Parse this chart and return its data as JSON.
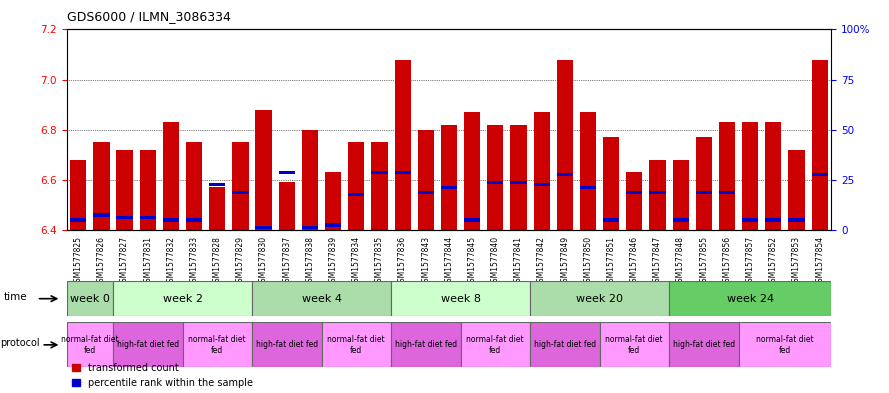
{
  "title": "GDS6000 / ILMN_3086334",
  "samples": [
    "GSM1577825",
    "GSM1577826",
    "GSM1577827",
    "GSM1577831",
    "GSM1577832",
    "GSM1577833",
    "GSM1577828",
    "GSM1577829",
    "GSM1577830",
    "GSM1577837",
    "GSM1577838",
    "GSM1577839",
    "GSM1577834",
    "GSM1577835",
    "GSM1577836",
    "GSM1577843",
    "GSM1577844",
    "GSM1577845",
    "GSM1577840",
    "GSM1577841",
    "GSM1577842",
    "GSM1577849",
    "GSM1577850",
    "GSM1577851",
    "GSM1577846",
    "GSM1577847",
    "GSM1577848",
    "GSM1577855",
    "GSM1577856",
    "GSM1577857",
    "GSM1577852",
    "GSM1577853",
    "GSM1577854"
  ],
  "bar_values": [
    6.68,
    6.75,
    6.72,
    6.72,
    6.83,
    6.75,
    6.57,
    6.75,
    6.88,
    6.59,
    6.8,
    6.63,
    6.75,
    6.75,
    7.08,
    6.8,
    6.82,
    6.87,
    6.82,
    6.82,
    6.87,
    7.08,
    6.87,
    6.77,
    6.63,
    6.68,
    6.68,
    6.77,
    6.83,
    6.83,
    6.83,
    6.72,
    7.08
  ],
  "percentile_values": [
    6.44,
    6.46,
    6.45,
    6.45,
    6.44,
    6.44,
    6.58,
    6.55,
    6.41,
    6.63,
    6.41,
    6.42,
    6.54,
    6.63,
    6.63,
    6.55,
    6.57,
    6.44,
    6.59,
    6.59,
    6.58,
    6.62,
    6.57,
    6.44,
    6.55,
    6.55,
    6.44,
    6.55,
    6.55,
    6.44,
    6.44,
    6.44,
    6.62
  ],
  "y_min": 6.4,
  "y_max": 7.2,
  "yticks_left": [
    6.4,
    6.6,
    6.8,
    7.0,
    7.2
  ],
  "yticks_right": [
    0,
    25,
    50,
    75,
    100
  ],
  "bar_color": "#cc0000",
  "percentile_color": "#0000cc",
  "bg_color": "#ffffff",
  "time_groups": [
    {
      "label": "week 0",
      "start": 0,
      "end": 2,
      "color": "#aaddaa"
    },
    {
      "label": "week 2",
      "start": 2,
      "end": 8,
      "color": "#ccffcc"
    },
    {
      "label": "week 4",
      "start": 8,
      "end": 14,
      "color": "#aaddaa"
    },
    {
      "label": "week 8",
      "start": 14,
      "end": 20,
      "color": "#ccffcc"
    },
    {
      "label": "week 20",
      "start": 20,
      "end": 26,
      "color": "#aaddaa"
    },
    {
      "label": "week 24",
      "start": 26,
      "end": 33,
      "color": "#66cc66"
    }
  ],
  "protocol_groups": [
    {
      "label": "normal-fat diet\nfed",
      "start": 0,
      "end": 2,
      "color": "#ff99ff"
    },
    {
      "label": "high-fat diet fed",
      "start": 2,
      "end": 5,
      "color": "#dd66dd"
    },
    {
      "label": "normal-fat diet\nfed",
      "start": 5,
      "end": 8,
      "color": "#ff99ff"
    },
    {
      "label": "high-fat diet fed",
      "start": 8,
      "end": 11,
      "color": "#dd66dd"
    },
    {
      "label": "normal-fat diet\nfed",
      "start": 11,
      "end": 14,
      "color": "#ff99ff"
    },
    {
      "label": "high-fat diet fed",
      "start": 14,
      "end": 17,
      "color": "#dd66dd"
    },
    {
      "label": "normal-fat diet\nfed",
      "start": 17,
      "end": 20,
      "color": "#ff99ff"
    },
    {
      "label": "high-fat diet fed",
      "start": 20,
      "end": 23,
      "color": "#dd66dd"
    },
    {
      "label": "normal-fat diet\nfed",
      "start": 23,
      "end": 26,
      "color": "#ff99ff"
    },
    {
      "label": "high-fat diet fed",
      "start": 26,
      "end": 29,
      "color": "#dd66dd"
    },
    {
      "label": "normal-fat diet\nfed",
      "start": 29,
      "end": 33,
      "color": "#ff99ff"
    }
  ]
}
